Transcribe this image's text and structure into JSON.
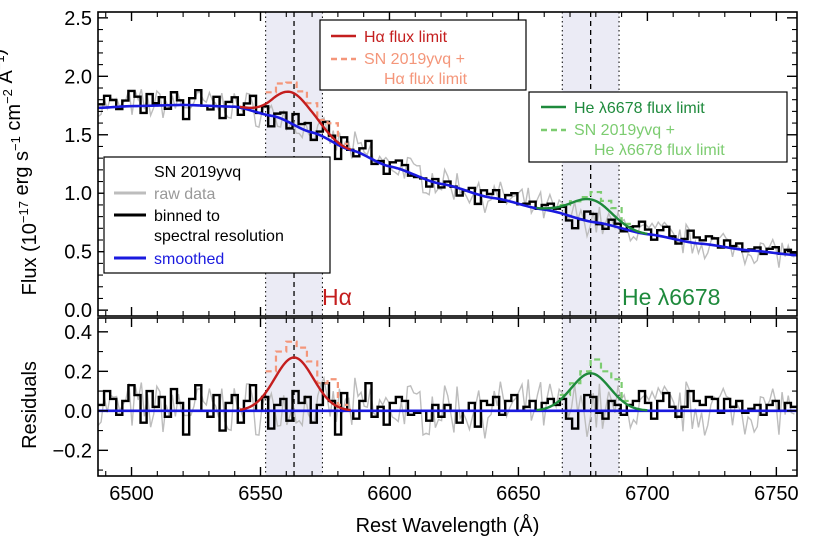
{
  "chart_data": {
    "type": "line",
    "x": {
      "label": "Rest Wavelength (Å)",
      "lim": [
        6487,
        6758
      ],
      "ticks": [
        6500,
        6550,
        6600,
        6650,
        6700,
        6750
      ],
      "tick_labels": [
        "6500",
        "6550",
        "6600",
        "6650",
        "6700",
        "6750"
      ]
    },
    "panels": [
      {
        "id": "flux",
        "ylabel_prefix": "Flux (10",
        "ylabel_exp1": "−17",
        "ylabel_mid": " erg s",
        "ylabel_exp2": "−1",
        "ylabel_mid2": " cm",
        "ylabel_exp3": "−2",
        "ylabel_mid3": " Å",
        "ylabel_exp4": "−1",
        "ylabel_suffix": ")",
        "ylim": [
          -0.05,
          2.55
        ],
        "ticks": [
          0.0,
          0.5,
          1.0,
          1.5,
          2.0,
          2.5
        ],
        "tick_labels": [
          "0.0",
          "0.5",
          "1.0",
          "1.5",
          "2.0",
          "2.5"
        ]
      },
      {
        "id": "residuals",
        "ylabel": "Residuals",
        "ylim": [
          -0.33,
          0.47
        ],
        "ticks": [
          -0.2,
          0.0,
          0.2,
          0.4
        ],
        "tick_labels": [
          "−0.2",
          "0.0",
          "0.2",
          "0.4"
        ]
      }
    ],
    "regions": [
      {
        "line": "Hα",
        "center": 6563,
        "lo": 6552,
        "hi": 6574
      },
      {
        "line": "He λ6678",
        "center": 6678,
        "lo": 6667,
        "hi": 6689
      }
    ],
    "line_labels": [
      {
        "text": "Hα",
        "color": "#c41e1e"
      },
      {
        "text": "He λ6678",
        "color": "#1e8a3c"
      }
    ],
    "smoothed_continuum": {
      "name": "smoothed",
      "color": "#1a1adf",
      "x": [
        6487,
        6500,
        6520,
        6540,
        6555,
        6570,
        6585,
        6600,
        6620,
        6640,
        6660,
        6680,
        6700,
        6720,
        6740,
        6758
      ],
      "y": [
        1.73,
        1.745,
        1.755,
        1.74,
        1.66,
        1.52,
        1.37,
        1.23,
        1.08,
        0.96,
        0.86,
        0.75,
        0.65,
        0.57,
        0.51,
        0.47
      ]
    },
    "models": [
      {
        "name": "Hα flux limit",
        "color": "#c41e1e",
        "center": 6563,
        "sigma": 7.5,
        "amplitude": 0.27,
        "range": [
          6542,
          6585
        ],
        "style": "solid"
      },
      {
        "name": "He λ6678 flux limit",
        "color": "#1e8a3c",
        "center": 6678,
        "sigma": 7.5,
        "amplitude": 0.19,
        "range": [
          6657,
          6700
        ],
        "style": "solid"
      }
    ],
    "combined_steps": [
      {
        "name": "SN 2019yvq + Hα flux limit",
        "color": "#f4967a",
        "x": [
          6552,
          6556,
          6560,
          6564,
          6568,
          6572,
          6576,
          6580
        ],
        "resid": [
          0.2,
          0.3,
          0.35,
          0.32,
          0.25,
          0.14,
          0.16,
          0.03
        ]
      },
      {
        "name": "SN 2019yvq + He λ6678 flux limit",
        "color": "#7ccc70",
        "x": [
          6666,
          6670,
          6674,
          6678,
          6682,
          6686,
          6690
        ],
        "resid": [
          0.08,
          0.14,
          0.2,
          0.26,
          0.2,
          0.16,
          0.05
        ]
      }
    ],
    "binned_residuals": [
      0.03,
      0.1,
      0.06,
      -0.02,
      0.05,
      0.13,
      0.08,
      -0.06,
      0.1,
      0.02,
      0.07,
      -0.03,
      0.11,
      0.04,
      -0.12,
      0.06,
      0.13,
      0.0,
      -0.03,
      0.08,
      -0.1,
      0.04,
      0.08,
      -0.06,
      0.05,
      0.13,
      0.0,
      0.07,
      -0.09,
      0.03,
      0.06,
      -0.05,
      0.1,
      0.04,
      0.07,
      -0.06,
      0.03,
      0.14,
      0.05,
      -0.12,
      0.09,
      0.0,
      -0.04,
      0.05,
      0.14,
      -0.03,
      0.02,
      -0.07,
      0.04,
      0.07,
      0.05,
      -0.02,
      -0.01,
      0.0,
      -0.05,
      0.03,
      -0.03,
      0.03,
      0.0,
      -0.06,
      0.0,
      0.04,
      -0.08,
      0.05,
      0.03,
      0.07,
      -0.02,
      0.05,
      0.08,
      0.0,
      0.02,
      0.05,
      0.0,
      0.04,
      0.06,
      0.03,
      0.06,
      -0.04,
      -0.09,
      0.0,
      0.08,
      0.07,
      -0.01,
      -0.04,
      0.05,
      0.03,
      -0.02,
      0.03,
      0.05,
      0.1,
      0.04,
      -0.04,
      0.05,
      0.09,
      0.02,
      -0.03,
      0.02,
      0.1,
      0.05,
      0.03,
      0.07,
      0.06,
      -0.01,
      0.06,
      0.02,
      0.05,
      -0.01,
      0.01,
      0.03,
      -0.02,
      0.03,
      0.05,
      0.0,
      0.04,
      0.02
    ],
    "raw_residual_amplitude": 0.12,
    "legend_main": {
      "title": "SN 2019yvq",
      "items": [
        {
          "label": "raw data",
          "color": "#bdbdbd"
        },
        {
          "label": "binned to",
          "label2": "spectral resolution",
          "color": "#000000"
        },
        {
          "label": "smoothed",
          "color": "#1a1adf"
        }
      ]
    },
    "legend_h": {
      "items": [
        {
          "label": "Hα flux limit",
          "color": "#c41e1e",
          "dash": false
        },
        {
          "label": "SN 2019yvq +",
          "label2": "Hα flux limit",
          "color": "#f4967a",
          "dash": true
        }
      ]
    },
    "legend_he": {
      "items": [
        {
          "label": "He λ6678 flux limit",
          "color": "#1e8a3c",
          "dash": false
        },
        {
          "label": "SN 2019yvq +",
          "label2": "He λ6678 flux limit",
          "color": "#7ccc70",
          "dash": true
        }
      ]
    },
    "colors": {
      "raw": "#bdbdbd",
      "binned": "#000000",
      "region_fill": "#ebebf5"
    }
  }
}
